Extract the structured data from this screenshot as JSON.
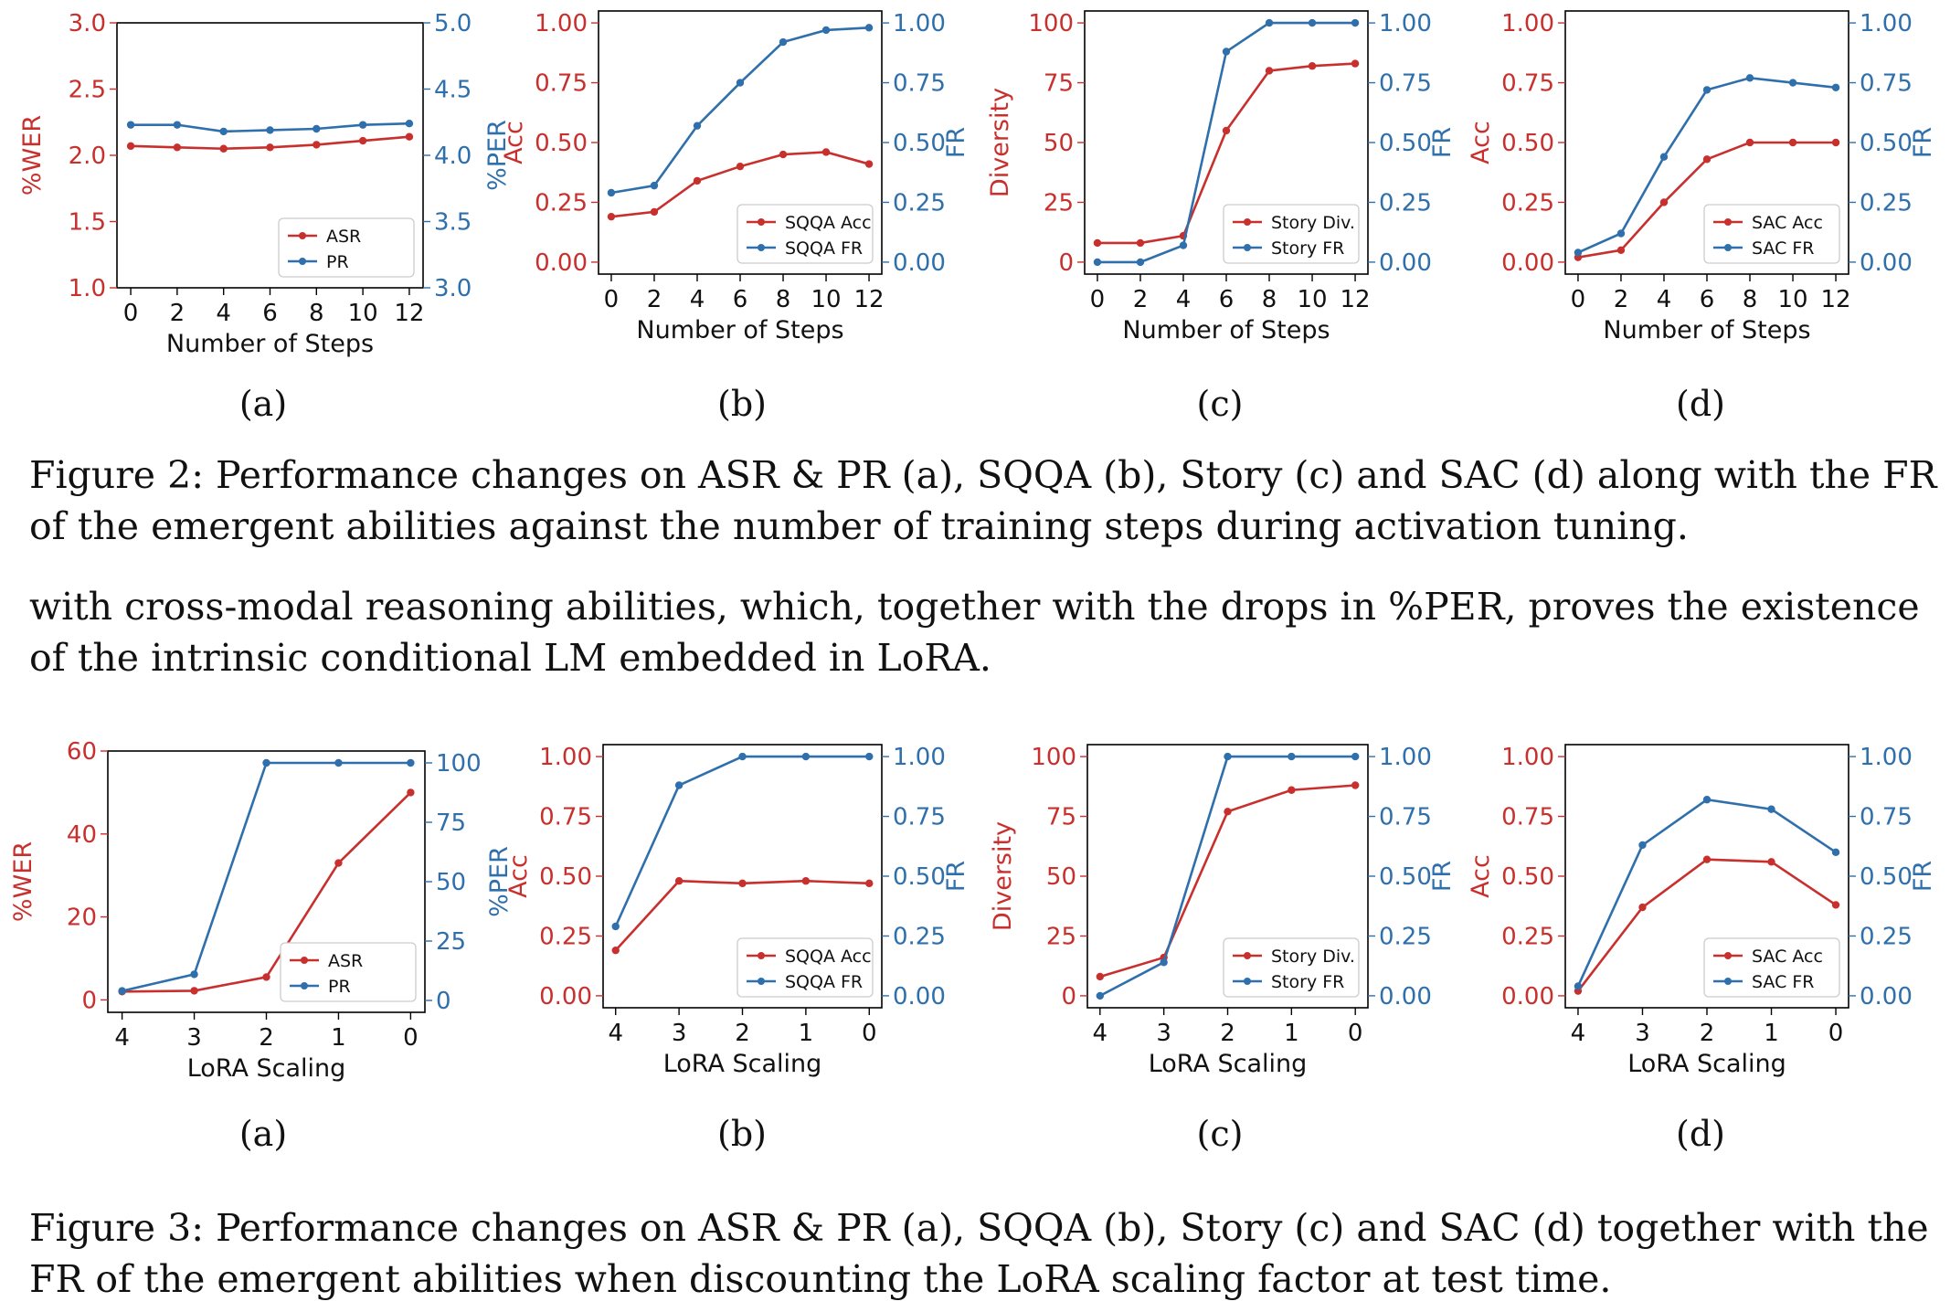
{
  "colors": {
    "left": "#c8302e",
    "right": "#2e6fac"
  },
  "figure2": {
    "caption": "Figure 2: Performance changes on ASR & PR (a), SQQA (b), Story (c) and SAC (d) along with the FR of the emergent abilities against the number of training steps during activation tuning.",
    "panel_labels": [
      "(a)",
      "(b)",
      "(c)",
      "(d)"
    ]
  },
  "body_text": "with cross-modal reasoning abilities, which, together with the drops in %PER, proves the existence of the intrinsic conditional LM embedded in LoRA.",
  "figure3": {
    "caption": "Figure 3: Performance changes on ASR & PR (a), SQQA (b), Story (c) and SAC (d) together with the FR of the emergent abilities when discounting the LoRA scaling factor at test time.",
    "panel_labels": [
      "(a)",
      "(b)",
      "(c)",
      "(d)"
    ]
  },
  "chart_data": [
    {
      "id": "fig2a",
      "type": "line",
      "xlabel": "Number of Steps",
      "x": [
        0,
        2,
        4,
        6,
        8,
        10,
        12
      ],
      "xticks": [
        "0",
        "2",
        "4",
        "6",
        "8",
        "10",
        "12"
      ],
      "ylabel_left": "%WER",
      "ylim_left": [
        1.0,
        3.0
      ],
      "yticks_left": [
        "1.0",
        "1.5",
        "2.0",
        "2.5",
        "3.0"
      ],
      "ylabel_right": "%PER",
      "ylim_right": [
        3.0,
        5.0
      ],
      "yticks_right": [
        "3.0",
        "3.5",
        "4.0",
        "4.5",
        "5.0"
      ],
      "legend": "lower-right",
      "series": [
        {
          "name": "ASR",
          "axis": "left",
          "values": [
            2.07,
            2.06,
            2.05,
            2.06,
            2.08,
            2.11,
            2.14
          ]
        },
        {
          "name": "PR",
          "axis": "right",
          "values": [
            4.23,
            4.23,
            4.18,
            4.19,
            4.2,
            4.23,
            4.24
          ]
        }
      ]
    },
    {
      "id": "fig2b",
      "type": "line",
      "xlabel": "Number of Steps",
      "x": [
        0,
        2,
        4,
        6,
        8,
        10,
        12
      ],
      "xticks": [
        "0",
        "2",
        "4",
        "6",
        "8",
        "10",
        "12"
      ],
      "ylabel_left": "Acc",
      "ylim_left": [
        -0.05,
        1.05
      ],
      "yticks_left": [
        "0.00",
        "0.25",
        "0.50",
        "0.75",
        "1.00"
      ],
      "yticks_left_values": [
        0,
        0.25,
        0.5,
        0.75,
        1.0
      ],
      "ylabel_right": "FR",
      "ylim_right": [
        -0.05,
        1.05
      ],
      "yticks_right": [
        "0.00",
        "0.25",
        "0.50",
        "0.75",
        "1.00"
      ],
      "legend": "lower-right",
      "series": [
        {
          "name": "SQQA Acc",
          "axis": "left",
          "values": [
            0.19,
            0.21,
            0.34,
            0.4,
            0.45,
            0.46,
            0.41
          ]
        },
        {
          "name": "SQQA FR",
          "axis": "right",
          "values": [
            0.29,
            0.32,
            0.57,
            0.75,
            0.92,
            0.97,
            0.98
          ]
        }
      ]
    },
    {
      "id": "fig2c",
      "type": "line",
      "xlabel": "Number of Steps",
      "x": [
        0,
        2,
        4,
        6,
        8,
        10,
        12
      ],
      "xticks": [
        "0",
        "2",
        "4",
        "6",
        "8",
        "10",
        "12"
      ],
      "ylabel_left": "Diversity",
      "ylim_left": [
        -5,
        105
      ],
      "yticks_left": [
        "0",
        "25",
        "50",
        "75",
        "100"
      ],
      "yticks_left_values": [
        0,
        25,
        50,
        75,
        100
      ],
      "ylabel_right": "FR",
      "ylim_right": [
        -0.05,
        1.05
      ],
      "yticks_right": [
        "0.00",
        "0.25",
        "0.50",
        "0.75",
        "1.00"
      ],
      "legend": "lower-right",
      "series": [
        {
          "name": "Story Div.",
          "axis": "left",
          "values": [
            8,
            8,
            11,
            55,
            80,
            82,
            83
          ]
        },
        {
          "name": "Story FR",
          "axis": "right",
          "values": [
            0.0,
            0.0,
            0.07,
            0.88,
            1.0,
            1.0,
            1.0
          ]
        }
      ]
    },
    {
      "id": "fig2d",
      "type": "line",
      "xlabel": "Number of Steps",
      "x": [
        0,
        2,
        4,
        6,
        8,
        10,
        12
      ],
      "xticks": [
        "0",
        "2",
        "4",
        "6",
        "8",
        "10",
        "12"
      ],
      "ylabel_left": "Acc",
      "ylim_left": [
        -0.05,
        1.05
      ],
      "yticks_left": [
        "0.00",
        "0.25",
        "0.50",
        "0.75",
        "1.00"
      ],
      "yticks_left_values": [
        0,
        0.25,
        0.5,
        0.75,
        1.0
      ],
      "ylabel_right": "FR",
      "ylim_right": [
        -0.05,
        1.05
      ],
      "yticks_right": [
        "0.00",
        "0.25",
        "0.50",
        "0.75",
        "1.00"
      ],
      "legend": "lower-right",
      "series": [
        {
          "name": "SAC Acc",
          "axis": "left",
          "values": [
            0.02,
            0.05,
            0.25,
            0.43,
            0.5,
            0.5,
            0.5
          ]
        },
        {
          "name": "SAC FR",
          "axis": "right",
          "values": [
            0.04,
            0.12,
            0.44,
            0.72,
            0.77,
            0.75,
            0.73
          ]
        }
      ]
    },
    {
      "id": "fig3a",
      "type": "line",
      "xlabel": "LoRA Scaling",
      "x": [
        4,
        3,
        2,
        1,
        0
      ],
      "xticks": [
        "4",
        "3",
        "2",
        "1",
        "0"
      ],
      "x_reversed": true,
      "ylabel_left": "%WER",
      "ylim_left": [
        -3,
        60
      ],
      "yticks_left": [
        "0",
        "20",
        "40",
        "60"
      ],
      "yticks_left_values": [
        0,
        20,
        40,
        60
      ],
      "ylabel_right": "%PER",
      "ylim_right": [
        -5,
        105
      ],
      "yticks_right": [
        "0",
        "25",
        "50",
        "75",
        "100"
      ],
      "yticks_right_values": [
        0,
        25,
        50,
        75,
        100
      ],
      "legend": "lower-right",
      "series": [
        {
          "name": "ASR",
          "axis": "left",
          "values": [
            2.0,
            2.2,
            5.5,
            33,
            50
          ]
        },
        {
          "name": "PR",
          "axis": "right",
          "values": [
            4,
            11,
            100,
            100,
            100
          ]
        }
      ]
    },
    {
      "id": "fig3b",
      "type": "line",
      "xlabel": "LoRA Scaling",
      "x": [
        4,
        3,
        2,
        1,
        0
      ],
      "xticks": [
        "4",
        "3",
        "2",
        "1",
        "0"
      ],
      "x_reversed": true,
      "ylabel_left": "Acc",
      "ylim_left": [
        -0.05,
        1.05
      ],
      "yticks_left": [
        "0.00",
        "0.25",
        "0.50",
        "0.75",
        "1.00"
      ],
      "yticks_left_values": [
        0,
        0.25,
        0.5,
        0.75,
        1.0
      ],
      "ylabel_right": "FR",
      "ylim_right": [
        -0.05,
        1.05
      ],
      "yticks_right": [
        "0.00",
        "0.25",
        "0.50",
        "0.75",
        "1.00"
      ],
      "legend": "lower-right",
      "series": [
        {
          "name": "SQQA Acc",
          "axis": "left",
          "values": [
            0.19,
            0.48,
            0.47,
            0.48,
            0.47
          ]
        },
        {
          "name": "SQQA FR",
          "axis": "right",
          "values": [
            0.29,
            0.88,
            1.0,
            1.0,
            1.0
          ]
        }
      ]
    },
    {
      "id": "fig3c",
      "type": "line",
      "xlabel": "LoRA Scaling",
      "x": [
        4,
        3,
        2,
        1,
        0
      ],
      "xticks": [
        "4",
        "3",
        "2",
        "1",
        "0"
      ],
      "x_reversed": true,
      "ylabel_left": "Diversity",
      "ylim_left": [
        -5,
        105
      ],
      "yticks_left": [
        "0",
        "25",
        "50",
        "75",
        "100"
      ],
      "yticks_left_values": [
        0,
        25,
        50,
        75,
        100
      ],
      "ylabel_right": "FR",
      "ylim_right": [
        -0.05,
        1.05
      ],
      "yticks_right": [
        "0.00",
        "0.25",
        "0.50",
        "0.75",
        "1.00"
      ],
      "legend": "lower-right",
      "series": [
        {
          "name": "Story Div.",
          "axis": "left",
          "values": [
            8,
            16,
            77,
            86,
            88
          ]
        },
        {
          "name": "Story FR",
          "axis": "right",
          "values": [
            0.0,
            0.14,
            1.0,
            1.0,
            1.0
          ]
        }
      ]
    },
    {
      "id": "fig3d",
      "type": "line",
      "xlabel": "LoRA Scaling",
      "x": [
        4,
        3,
        2,
        1,
        0
      ],
      "xticks": [
        "4",
        "3",
        "2",
        "1",
        "0"
      ],
      "x_reversed": true,
      "ylabel_left": "Acc",
      "ylim_left": [
        -0.05,
        1.05
      ],
      "yticks_left": [
        "0.00",
        "0.25",
        "0.50",
        "0.75",
        "1.00"
      ],
      "yticks_left_values": [
        0,
        0.25,
        0.5,
        0.75,
        1.0
      ],
      "ylabel_right": "FR",
      "ylim_right": [
        -0.05,
        1.05
      ],
      "yticks_right": [
        "0.00",
        "0.25",
        "0.50",
        "0.75",
        "1.00"
      ],
      "legend": "lower-right",
      "series": [
        {
          "name": "SAC Acc",
          "axis": "left",
          "values": [
            0.02,
            0.37,
            0.57,
            0.56,
            0.38
          ]
        },
        {
          "name": "SAC FR",
          "axis": "right",
          "values": [
            0.04,
            0.63,
            0.82,
            0.78,
            0.6
          ]
        }
      ]
    }
  ]
}
